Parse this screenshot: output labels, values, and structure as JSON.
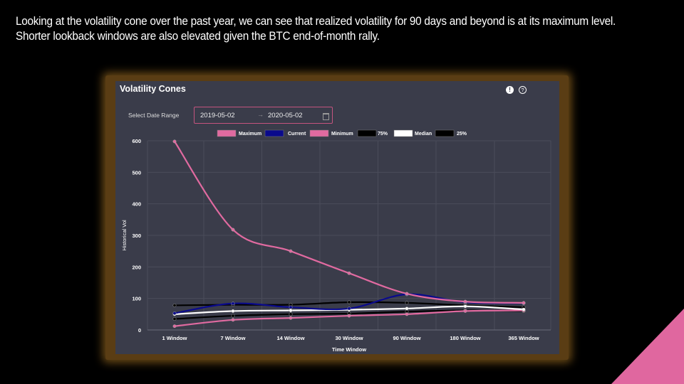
{
  "caption": {
    "line1": "Looking at the volatility cone over the past year, we can see that realized volatility for 90 days and beyond is at its maximum level.",
    "line2": "Shorter lookback windows are also elevated given the BTC end-of-month rally."
  },
  "panel": {
    "title": "Volatility Cones",
    "alert_icon": "exclamation-circle-icon",
    "help_icon": "question-circle-icon",
    "date_range_label": "Select Date Range",
    "date_start": "2019-05-02",
    "date_end": "2020-05-02",
    "date_separator_icon": "arrow-right-icon",
    "calendar_icon": "calendar-icon"
  },
  "colors": {
    "accent_triangle": "#e0679f",
    "panel_bg": "#3a3c4a",
    "frame": "#5a3d14"
  },
  "chart_data": {
    "type": "line",
    "categories": [
      "1 Window",
      "7 Window",
      "14 Window",
      "30 Window",
      "90 Window",
      "180 Window",
      "365 Window"
    ],
    "xlabel": "Time Window",
    "ylabel": "Historical Vol",
    "ylim": [
      0,
      600
    ],
    "yticks": [
      "0",
      "100",
      "200",
      "300",
      "400",
      "500",
      "600"
    ],
    "grid": true,
    "legend_position": "top-center",
    "series": [
      {
        "name": "Maximum",
        "color": "#e06aa0",
        "values": [
          598,
          318,
          250,
          180,
          115,
          90,
          86
        ]
      },
      {
        "name": "Current",
        "color": "#0a0a8c",
        "values": [
          53,
          84,
          72,
          68,
          113,
          88,
          85
        ]
      },
      {
        "name": "Minimum",
        "color": "#e06aa0",
        "values": [
          12,
          32,
          38,
          45,
          50,
          60,
          62
        ]
      },
      {
        "name": "75%",
        "color": "#000000",
        "values": [
          78,
          80,
          80,
          88,
          86,
          78,
          72
        ]
      },
      {
        "name": "Median",
        "color": "#ffffff",
        "values": [
          50,
          60,
          62,
          64,
          68,
          75,
          65
        ]
      },
      {
        "name": "25%",
        "color": "#000000",
        "values": [
          35,
          45,
          50,
          52,
          58,
          62,
          60
        ]
      }
    ]
  }
}
